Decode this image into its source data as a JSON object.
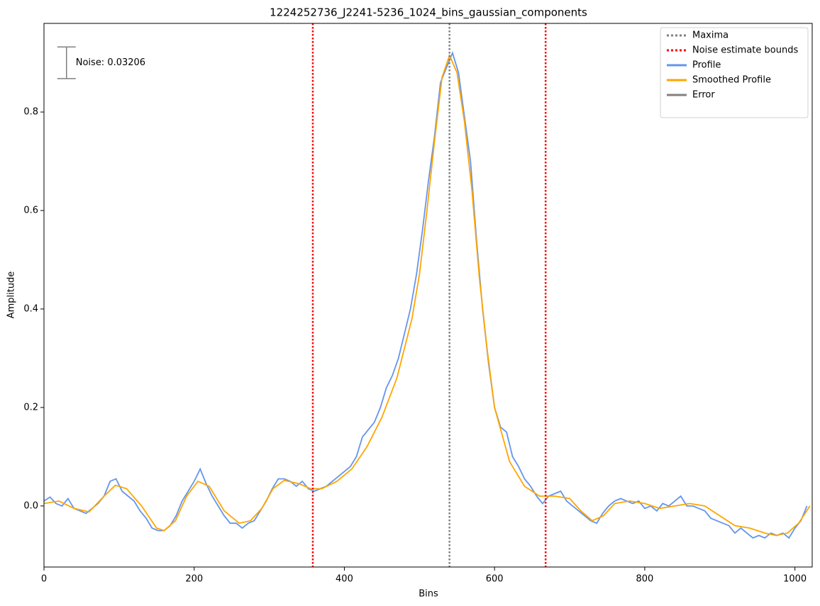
{
  "chart_data": {
    "type": "line",
    "title": "1224252736_J2241-5236_1024_bins_gaussian_components",
    "x_label": "Bins",
    "y_label": "Amplitude",
    "xlim": [
      0,
      1023
    ],
    "ylim": [
      -0.124,
      0.98
    ],
    "xticks": [
      0,
      200,
      400,
      600,
      800,
      1000
    ],
    "yticks": [
      {
        "value": 0,
        "label": "0.0"
      },
      0.2,
      0.4,
      0.6,
      0.8
    ],
    "legend": "upper right",
    "vlines": [
      {
        "name": "Maxima",
        "color": "#808080",
        "x": [
          540
        ]
      },
      {
        "name": "Noise estimate bounds",
        "color": "#ff0000",
        "x": [
          358,
          668
        ]
      }
    ],
    "series": [
      {
        "name": "Profile",
        "color": "#6495ed",
        "x": [
          0,
          8,
          16,
          24,
          32,
          40,
          48,
          56,
          64,
          72,
          80,
          88,
          96,
          104,
          112,
          120,
          128,
          136,
          144,
          152,
          160,
          168,
          176,
          184,
          192,
          200,
          208,
          216,
          224,
          232,
          240,
          248,
          256,
          264,
          272,
          280,
          288,
          296,
          304,
          312,
          320,
          328,
          336,
          344,
          352,
          360,
          368,
          376,
          384,
          392,
          400,
          408,
          416,
          424,
          432,
          440,
          448,
          456,
          464,
          472,
          480,
          488,
          496,
          504,
          512,
          520,
          528,
          536,
          544,
          552,
          560,
          568,
          576,
          584,
          592,
          600,
          608,
          616,
          624,
          632,
          640,
          648,
          656,
          664,
          672,
          680,
          688,
          696,
          704,
          712,
          720,
          728,
          736,
          744,
          752,
          760,
          768,
          776,
          784,
          792,
          800,
          808,
          816,
          824,
          832,
          840,
          848,
          856,
          864,
          872,
          880,
          888,
          896,
          904,
          912,
          920,
          928,
          936,
          944,
          952,
          960,
          968,
          976,
          984,
          992,
          1000,
          1008,
          1016
        ],
        "values": [
          0.01,
          0.018,
          0.005,
          0.0,
          0.015,
          -0.005,
          -0.01,
          -0.015,
          -0.005,
          0.005,
          0.02,
          0.05,
          0.055,
          0.03,
          0.02,
          0.01,
          -0.01,
          -0.025,
          -0.045,
          -0.05,
          -0.05,
          -0.04,
          -0.02,
          0.01,
          0.03,
          0.05,
          0.075,
          0.045,
          0.02,
          0.0,
          -0.02,
          -0.035,
          -0.035,
          -0.045,
          -0.035,
          -0.03,
          -0.01,
          0.01,
          0.035,
          0.055,
          0.055,
          0.05,
          0.04,
          0.05,
          0.035,
          0.03,
          0.035,
          0.04,
          0.05,
          0.06,
          0.07,
          0.08,
          0.1,
          0.14,
          0.155,
          0.17,
          0.2,
          0.24,
          0.265,
          0.3,
          0.35,
          0.4,
          0.47,
          0.56,
          0.66,
          0.75,
          0.86,
          0.89,
          0.92,
          0.88,
          0.79,
          0.7,
          0.54,
          0.4,
          0.29,
          0.2,
          0.16,
          0.15,
          0.1,
          0.08,
          0.055,
          0.04,
          0.02,
          0.005,
          0.02,
          0.025,
          0.03,
          0.01,
          0.0,
          -0.01,
          -0.02,
          -0.03,
          -0.035,
          -0.015,
          0.0,
          0.01,
          0.015,
          0.01,
          0.005,
          0.01,
          -0.005,
          0.0,
          -0.01,
          0.005,
          0.0,
          0.01,
          0.02,
          0.0,
          0.0,
          -0.005,
          -0.01,
          -0.025,
          -0.03,
          -0.035,
          -0.04,
          -0.055,
          -0.045,
          -0.055,
          -0.065,
          -0.06,
          -0.065,
          -0.055,
          -0.06,
          -0.055,
          -0.065,
          -0.045,
          -0.03,
          0.0
        ]
      },
      {
        "name": "Smoothed Profile",
        "color": "#ffa500",
        "x": [
          0,
          20,
          40,
          60,
          80,
          95,
          110,
          130,
          150,
          160,
          175,
          190,
          205,
          220,
          240,
          260,
          275,
          290,
          305,
          320,
          340,
          355,
          370,
          390,
          410,
          430,
          450,
          470,
          490,
          500,
          510,
          520,
          530,
          540,
          550,
          560,
          570,
          580,
          590,
          600,
          620,
          640,
          660,
          680,
          700,
          715,
          730,
          745,
          760,
          780,
          800,
          820,
          840,
          860,
          880,
          900,
          920,
          940,
          960,
          975,
          990,
          1005,
          1020
        ],
        "values": [
          0.005,
          0.01,
          -0.005,
          -0.012,
          0.02,
          0.042,
          0.035,
          0.0,
          -0.045,
          -0.05,
          -0.03,
          0.02,
          0.05,
          0.04,
          -0.01,
          -0.035,
          -0.03,
          -0.005,
          0.035,
          0.052,
          0.045,
          0.035,
          0.035,
          0.05,
          0.075,
          0.12,
          0.18,
          0.26,
          0.38,
          0.47,
          0.6,
          0.74,
          0.87,
          0.915,
          0.88,
          0.78,
          0.64,
          0.46,
          0.32,
          0.2,
          0.09,
          0.04,
          0.02,
          0.02,
          0.015,
          -0.01,
          -0.03,
          -0.02,
          0.005,
          0.01,
          0.005,
          -0.005,
          0.0,
          0.005,
          0.0,
          -0.02,
          -0.04,
          -0.045,
          -0.055,
          -0.06,
          -0.055,
          -0.035,
          0.0
        ]
      }
    ],
    "errorbar": {
      "name": "Error",
      "color": "#808080",
      "x": 30,
      "y": 0.9,
      "error": 0.03206,
      "label": "Noise: 0.03206"
    }
  }
}
